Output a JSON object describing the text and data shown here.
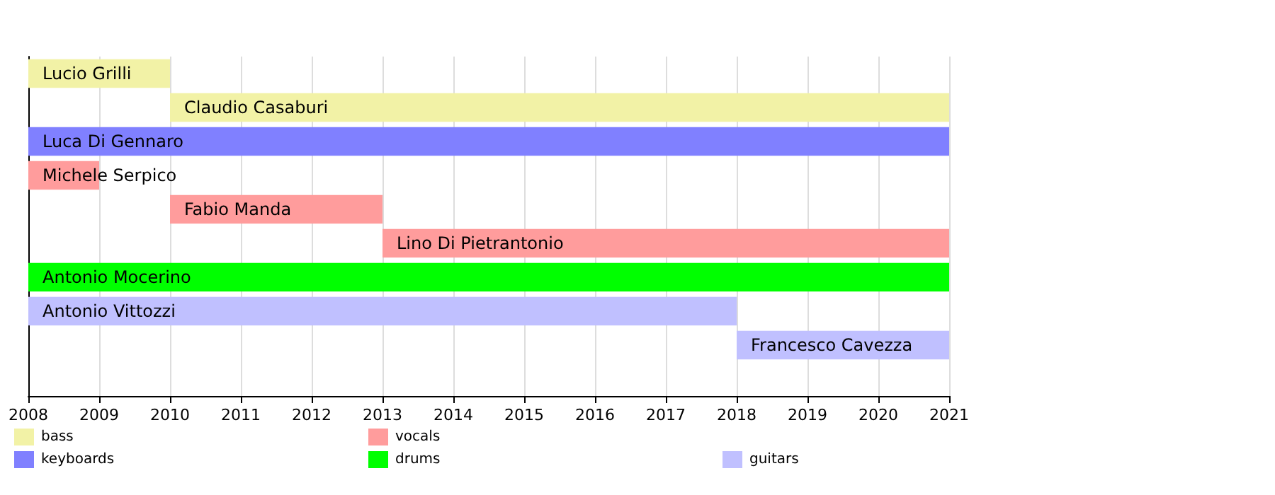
{
  "chart_data": {
    "type": "bar",
    "orientation": "horizontal",
    "categories": [
      null,
      null,
      null,
      null,
      null,
      null,
      null,
      null,
      null,
      null
    ],
    "series": [
      {
        "name": "bass",
        "color": "#f2f2a6",
        "base": [
          2008,
          2010,
          null,
          null,
          null,
          null,
          null,
          null,
          null,
          null
        ],
        "values": [
          2,
          11,
          null,
          null,
          null,
          null,
          null,
          null,
          null,
          null
        ],
        "value_labels": [
          "Lucio Grilli",
          "Claudio Casaburi",
          null,
          null,
          null,
          null,
          null,
          null,
          null,
          null
        ]
      },
      {
        "name": "keyboards",
        "color": "#8080ff",
        "base": [
          null,
          null,
          2008,
          null,
          null,
          null,
          null,
          null,
          null,
          null
        ],
        "values": [
          null,
          null,
          13,
          null,
          null,
          null,
          null,
          null,
          null,
          null
        ],
        "value_labels": [
          null,
          null,
          "Luca Di Gennaro",
          null,
          null,
          null,
          null,
          null,
          null,
          null
        ]
      },
      {
        "name": "vocals",
        "color": "#ff9c9c",
        "base": [
          null,
          null,
          null,
          2008,
          2010,
          2013,
          null,
          null,
          null,
          null
        ],
        "values": [
          null,
          null,
          null,
          1,
          3,
          8,
          null,
          null,
          null,
          null
        ],
        "value_labels": [
          null,
          null,
          null,
          "Michele Serpico",
          "Fabio Manda",
          "Lino Di Pietrantonio",
          null,
          null,
          null,
          null
        ]
      },
      {
        "name": "drums",
        "color": "#00ff00",
        "base": [
          null,
          null,
          null,
          null,
          null,
          null,
          2008,
          null,
          null,
          null
        ],
        "values": [
          null,
          null,
          null,
          null,
          null,
          null,
          13,
          null,
          null,
          null
        ],
        "value_labels": [
          null,
          null,
          null,
          null,
          null,
          null,
          "Antonio Mocerino",
          null,
          null,
          null
        ]
      },
      {
        "name": "guitars",
        "color": "#c0c0ff",
        "base": [
          null,
          null,
          null,
          null,
          null,
          null,
          null,
          2008,
          2018,
          null
        ],
        "values": [
          null,
          null,
          null,
          null,
          null,
          null,
          null,
          10,
          3,
          null
        ],
        "value_labels": [
          null,
          null,
          null,
          null,
          null,
          null,
          null,
          "Antonio Vittozzi",
          "Francesco Cavezza",
          null
        ]
      }
    ],
    "xlim": [
      2008,
      2021
    ],
    "xticks": [
      2008,
      2009,
      2010,
      2011,
      2012,
      2013,
      2014,
      2015,
      2016,
      2017,
      2018,
      2019,
      2020,
      2021
    ],
    "grid": "x",
    "legend": "bottom",
    "tick_labels": "x"
  }
}
